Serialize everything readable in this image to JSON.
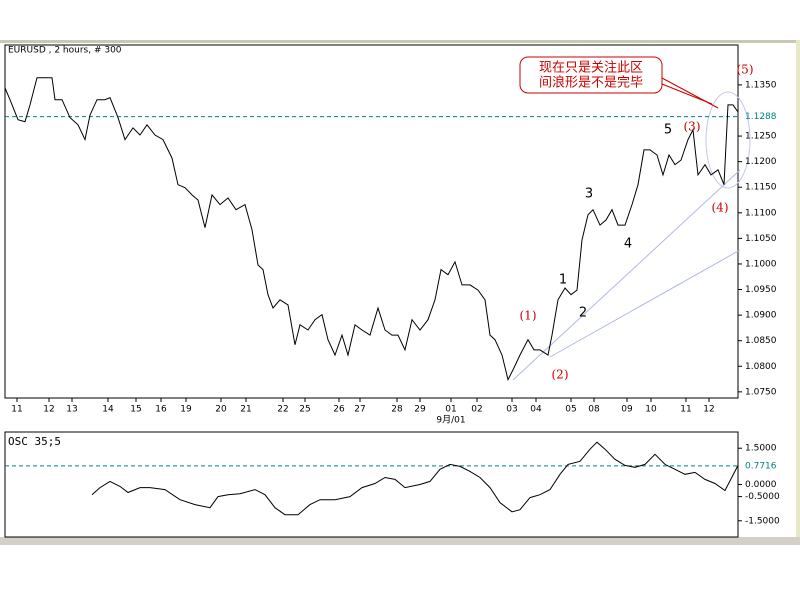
{
  "chart_data": [
    {
      "type": "line",
      "title": "EURUSD , 2 hours, # 300",
      "color": "#000000",
      "x": [
        5,
        10,
        18,
        25,
        30,
        37,
        45,
        52,
        55,
        62,
        70,
        78,
        85,
        90,
        97,
        105,
        110,
        118,
        125,
        133,
        140,
        147,
        155,
        163,
        172,
        178,
        185,
        192,
        198,
        205,
        212,
        220,
        228,
        236,
        245,
        252,
        258,
        263,
        268,
        273,
        280,
        288,
        295,
        300,
        308,
        315,
        322,
        328,
        335,
        342,
        348,
        355,
        362,
        370,
        378,
        385,
        392,
        398,
        405,
        412,
        420,
        428,
        435,
        441,
        448,
        455,
        462,
        470,
        478,
        485,
        490,
        495,
        502,
        508,
        513,
        520,
        528,
        534,
        540,
        548,
        552,
        558,
        565,
        571,
        577,
        582,
        588,
        593,
        600,
        606,
        612,
        618,
        625,
        632,
        638,
        644,
        650,
        657,
        663,
        669,
        675,
        681,
        688,
        693,
        698,
        705,
        711,
        718,
        724,
        728,
        733,
        738
      ],
      "values": [
        1.1344,
        1.1321,
        1.1282,
        1.1278,
        1.1311,
        1.1364,
        1.1364,
        1.1364,
        1.1321,
        1.1321,
        1.1286,
        1.1272,
        1.1243,
        1.1291,
        1.1321,
        1.1321,
        1.1325,
        1.1286,
        1.1243,
        1.1266,
        1.1252,
        1.1272,
        1.1252,
        1.1243,
        1.1207,
        1.1155,
        1.1149,
        1.1135,
        1.1125,
        1.1071,
        1.1135,
        1.1116,
        1.1129,
        1.1106,
        1.1116,
        1.1067,
        1.0998,
        1.0989,
        1.094,
        1.0914,
        1.093,
        1.092,
        1.0842,
        1.0881,
        1.0871,
        1.0891,
        1.0901,
        1.0852,
        1.0822,
        1.0861,
        1.0822,
        1.0881,
        1.0871,
        1.0861,
        1.0914,
        1.0871,
        1.0861,
        1.0861,
        1.0832,
        1.0891,
        1.0871,
        1.0891,
        1.093,
        1.0989,
        1.0979,
        1.1004,
        1.0959,
        1.0959,
        1.0949,
        1.093,
        1.0861,
        1.0852,
        1.0822,
        1.0774,
        1.0793,
        1.0822,
        1.0852,
        1.0832,
        1.0832,
        1.0822,
        1.0861,
        1.093,
        1.0953,
        1.094,
        1.0949,
        1.1047,
        1.1096,
        1.1106,
        1.1076,
        1.1086,
        1.1106,
        1.1076,
        1.1076,
        1.1116,
        1.1155,
        1.1223,
        1.1223,
        1.1213,
        1.1174,
        1.1213,
        1.1194,
        1.1203,
        1.1243,
        1.1262,
        1.1174,
        1.1194,
        1.1174,
        1.1184,
        1.1155,
        1.1311,
        1.1311,
        1.1297
      ],
      "xlim": [
        5,
        738
      ],
      "ylim": [
        1.0738,
        1.1428
      ],
      "xticks": [
        {
          "value": 17,
          "label": "11"
        },
        {
          "value": 49,
          "label": "12"
        },
        {
          "value": 72,
          "label": "13"
        },
        {
          "value": 108,
          "label": "14"
        },
        {
          "value": 136,
          "label": "15"
        },
        {
          "value": 161,
          "label": "16"
        },
        {
          "value": 186,
          "label": "19"
        },
        {
          "value": 221,
          "label": "20"
        },
        {
          "value": 246,
          "label": "21"
        },
        {
          "value": 283,
          "label": "22"
        },
        {
          "value": 305,
          "label": "25"
        },
        {
          "value": 339,
          "label": "26"
        },
        {
          "value": 360,
          "label": "27"
        },
        {
          "value": 397,
          "label": "28"
        },
        {
          "value": 420,
          "label": "29"
        },
        {
          "value": 451,
          "label": "01"
        },
        {
          "value": 477,
          "label": "02"
        },
        {
          "value": 512,
          "label": "03"
        },
        {
          "value": 536,
          "label": "04"
        },
        {
          "value": 571,
          "label": "05"
        },
        {
          "value": 594,
          "label": "08"
        },
        {
          "value": 627,
          "label": "09"
        },
        {
          "value": 651,
          "label": "10"
        },
        {
          "value": 686,
          "label": "11"
        },
        {
          "value": 709,
          "label": "12"
        }
      ],
      "x_axis_note": "9月/01",
      "yticks": [
        {
          "value": 1.135,
          "label": "1.1350"
        },
        {
          "value": 1.125,
          "label": "1.1250"
        },
        {
          "value": 1.12,
          "label": "1.1200"
        },
        {
          "value": 1.115,
          "label": "1.1150"
        },
        {
          "value": 1.11,
          "label": "1.1100"
        },
        {
          "value": 1.105,
          "label": "1.1050"
        },
        {
          "value": 1.1,
          "label": "1.1000"
        },
        {
          "value": 1.095,
          "label": "1.0950"
        },
        {
          "value": 1.09,
          "label": "1.0900"
        },
        {
          "value": 1.085,
          "label": "1.0850"
        },
        {
          "value": 1.08,
          "label": "1.0800"
        },
        {
          "value": 1.075,
          "label": "1.0750"
        }
      ],
      "reference_line": 1.1288,
      "reference_color": "#008080",
      "annotations": [
        {
          "text": "(1)",
          "color": "#cc0000"
        },
        {
          "text": "(2)",
          "color": "#cc0000"
        },
        {
          "text": "1",
          "color": "#000000"
        },
        {
          "text": "2",
          "color": "#000000"
        },
        {
          "text": "3",
          "color": "#000000"
        },
        {
          "text": "4",
          "color": "#000000"
        },
        {
          "text": "5",
          "color": "#000000"
        },
        {
          "text": "(3)",
          "color": "#cc0000"
        },
        {
          "text": "(4)",
          "color": "#cc0000"
        },
        {
          "text": "(5)",
          "color": "#cc0000"
        },
        {
          "text": "现在只是关注此区",
          "color": "#cc0000"
        },
        {
          "text": "间浪形是不是完毕",
          "color": "#cc0000"
        }
      ]
    },
    {
      "type": "line",
      "title": "OSC 35;5",
      "color": "#000000",
      "x": [
        92,
        100,
        110,
        120,
        128,
        140,
        150,
        165,
        180,
        195,
        210,
        218,
        228,
        240,
        255,
        265,
        275,
        285,
        298,
        310,
        320,
        335,
        350,
        362,
        375,
        385,
        395,
        405,
        420,
        430,
        440,
        450,
        460,
        470,
        480,
        490,
        500,
        512,
        520,
        530,
        540,
        550,
        560,
        568,
        580,
        590,
        597,
        605,
        615,
        625,
        635,
        645,
        655,
        665,
        675,
        685,
        695,
        705,
        715,
        725,
        738
      ],
      "values": [
        -0.42,
        -0.13,
        0.13,
        -0.08,
        -0.33,
        -0.13,
        -0.13,
        -0.21,
        -0.63,
        -0.83,
        -0.96,
        -0.5,
        -0.42,
        -0.38,
        -0.21,
        -0.42,
        -0.96,
        -1.25,
        -1.25,
        -0.83,
        -0.63,
        -0.63,
        -0.5,
        -0.13,
        0.04,
        0.29,
        0.21,
        -0.13,
        0,
        0.13,
        0.63,
        0.83,
        0.75,
        0.54,
        0.29,
        -0.13,
        -0.75,
        -1.13,
        -1.04,
        -0.54,
        -0.42,
        -0.21,
        0.42,
        0.83,
        0.96,
        1.46,
        1.75,
        1.46,
        1.04,
        0.79,
        0.71,
        0.83,
        1.25,
        0.83,
        0.63,
        0.42,
        0.5,
        0.21,
        0.04,
        -0.25,
        0.79
      ],
      "xlim": [
        5,
        738
      ],
      "ylim": [
        -2.17,
        2.17
      ],
      "yticks": [
        {
          "value": 1.5,
          "label": "1.5000"
        },
        {
          "value": 0,
          "label": "0.0000"
        },
        {
          "value": -0.5,
          "label": "-0.5000"
        },
        {
          "value": -1.5,
          "label": "-1.5000"
        }
      ],
      "reference_line": 0.7716,
      "reference_color": "#008080"
    }
  ]
}
